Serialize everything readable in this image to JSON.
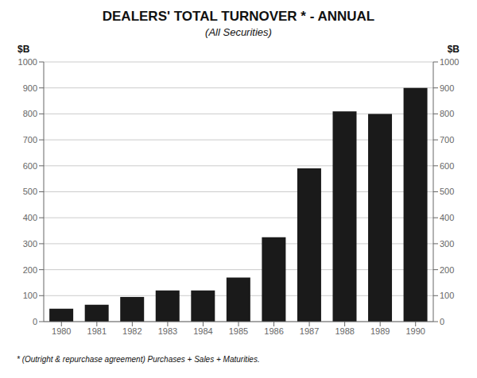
{
  "chart_data": {
    "type": "bar",
    "title": "DEALERS' TOTAL TURNOVER * - ANNUAL",
    "subtitle": "(All Securities)",
    "ylabel": "$B",
    "y2label": "$B",
    "footnote": "* (Outright & repurchase agreement) Purchases + Sales + Maturities.",
    "categories": [
      "1980",
      "1981",
      "1982",
      "1983",
      "1984",
      "1985",
      "1986",
      "1987",
      "1988",
      "1989",
      "1990"
    ],
    "values": [
      50,
      65,
      95,
      120,
      120,
      170,
      325,
      590,
      810,
      800,
      900
    ],
    "color": "#1a1a1a",
    "ylim": [
      0,
      1000
    ],
    "yticks": [
      0,
      100,
      200,
      300,
      400,
      500,
      600,
      700,
      800,
      900,
      1000
    ],
    "y2lim": [
      0,
      1000
    ],
    "y2ticks": [
      0,
      100,
      200,
      300,
      400,
      500,
      600,
      700,
      800,
      900,
      1000
    ],
    "grid": true
  }
}
